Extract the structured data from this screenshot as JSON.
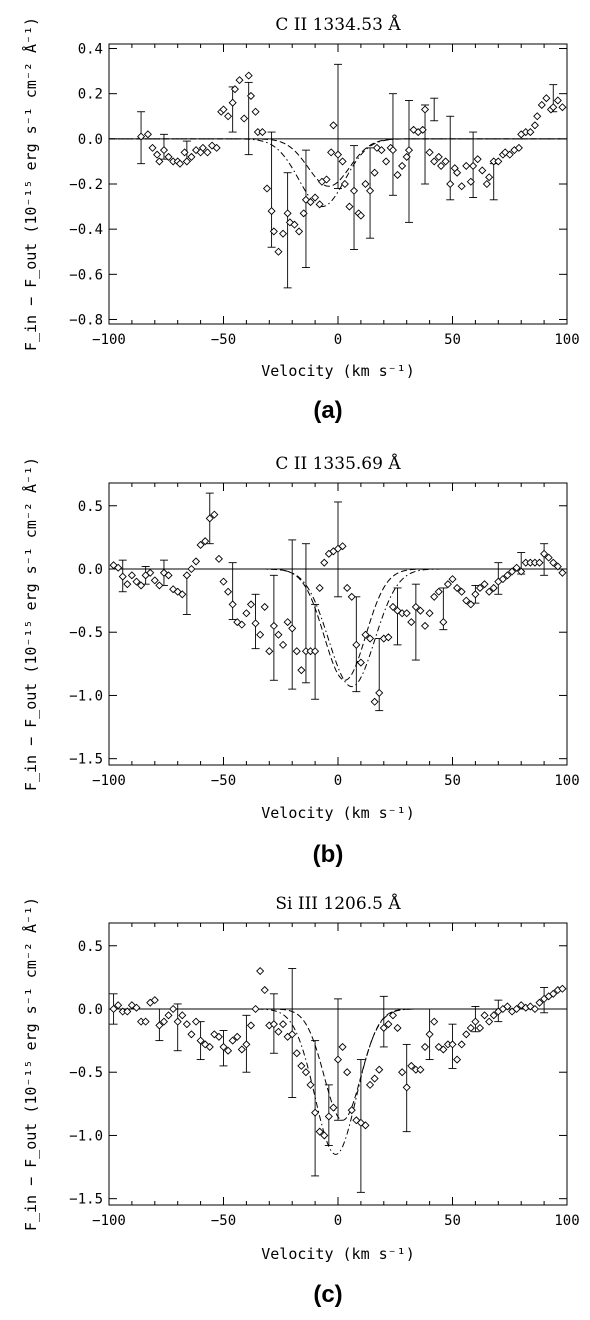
{
  "chart_data": [
    {
      "type": "scatter",
      "title": "C II 1334.53 Å",
      "xlabel": "Velocity (km s⁻¹)",
      "ylabel": "F_in − F_out (10⁻¹⁵ erg s⁻¹ cm⁻² Å⁻¹)",
      "panel_label": "(a)",
      "xlim": [
        -100,
        100
      ],
      "ylim": [
        -0.82,
        0.42
      ],
      "xticks": [
        -100,
        -50,
        0,
        50,
        100
      ],
      "xtick_labels": [
        "−100",
        "−50",
        "0",
        "50",
        "100"
      ],
      "yticks": [
        -0.8,
        -0.6,
        -0.4,
        -0.2,
        0.0,
        0.2,
        0.4
      ],
      "ytick_labels": [
        "−0.8",
        "−0.6",
        "−0.4",
        "−0.2",
        "0.0",
        "0.2",
        "0.4"
      ],
      "zero_line": true,
      "x": [
        -86,
        -83,
        -81,
        -79,
        -78,
        -76,
        -74,
        -72,
        -70,
        -69,
        -67,
        -66,
        -64,
        -62,
        -60,
        -59,
        -57,
        -55,
        -53,
        -51,
        -50,
        -48,
        -46,
        -45,
        -43,
        -41,
        -39,
        -38,
        -36,
        -35,
        -33,
        -31,
        -29,
        -28,
        -26,
        -24,
        -22,
        -21,
        -19,
        -17,
        -15,
        -14,
        -12,
        -10,
        -8,
        -7,
        -5,
        -3,
        -2,
        0,
        2,
        3,
        5,
        7,
        9,
        10,
        12,
        14,
        16,
        17,
        19,
        21,
        23,
        24,
        26,
        28,
        30,
        31,
        33,
        35,
        37,
        38,
        40,
        42,
        44,
        45,
        47,
        49,
        51,
        52,
        54,
        56,
        58,
        59,
        61,
        63,
        65,
        66,
        68,
        70,
        72,
        73,
        75,
        77,
        79,
        80,
        82,
        84,
        86,
        87,
        89,
        91,
        93,
        94,
        96,
        98
      ],
      "y": [
        0.01,
        0.02,
        -0.04,
        -0.07,
        -0.1,
        -0.05,
        -0.08,
        -0.1,
        -0.1,
        -0.11,
        -0.06,
        -0.1,
        -0.08,
        -0.05,
        -0.06,
        -0.04,
        -0.06,
        -0.03,
        -0.04,
        0.12,
        0.13,
        0.1,
        0.16,
        0.22,
        0.26,
        0.09,
        0.28,
        0.19,
        0.12,
        0.03,
        0.03,
        -0.22,
        -0.32,
        -0.41,
        -0.5,
        -0.42,
        -0.33,
        -0.37,
        -0.38,
        -0.41,
        -0.33,
        -0.27,
        -0.28,
        -0.26,
        -0.29,
        -0.19,
        -0.18,
        -0.06,
        0.06,
        -0.07,
        -0.1,
        -0.2,
        -0.3,
        -0.23,
        -0.33,
        -0.34,
        -0.2,
        -0.23,
        -0.15,
        -0.04,
        -0.05,
        -0.1,
        -0.04,
        -0.05,
        -0.16,
        -0.12,
        -0.08,
        -0.05,
        0.04,
        0.03,
        0.04,
        0.13,
        -0.06,
        -0.1,
        -0.08,
        -0.12,
        -0.1,
        -0.2,
        -0.13,
        -0.15,
        -0.21,
        -0.12,
        -0.19,
        -0.12,
        -0.09,
        -0.14,
        -0.2,
        -0.17,
        -0.1,
        -0.1,
        -0.07,
        -0.06,
        -0.07,
        -0.05,
        -0.04,
        0.02,
        0.03,
        0.03,
        0.06,
        0.1,
        0.15,
        0.18,
        0.13,
        0.14,
        0.17,
        0.14
      ],
      "errorbars": [
        {
          "x": -86,
          "y": 0.01,
          "lo": -0.11,
          "hi": 0.12
        },
        {
          "x": -76,
          "y": -0.05,
          "lo": -0.09,
          "hi": 0.02
        },
        {
          "x": -66,
          "y": -0.06,
          "lo": -0.1,
          "hi": -0.01
        },
        {
          "x": -46,
          "y": 0.13,
          "lo": 0.03,
          "hi": 0.23
        },
        {
          "x": -39,
          "y": 0.1,
          "lo": -0.07,
          "hi": 0.25
        },
        {
          "x": -29,
          "y": -0.23,
          "lo": -0.48,
          "hi": 0.03
        },
        {
          "x": -22,
          "y": -0.4,
          "lo": -0.66,
          "hi": -0.15
        },
        {
          "x": -14,
          "y": -0.31,
          "lo": -0.57,
          "hi": -0.05
        },
        {
          "x": 0,
          "y": 0.06,
          "lo": -0.22,
          "hi": 0.33
        },
        {
          "x": 7,
          "y": -0.23,
          "lo": -0.49,
          "hi": -0.03
        },
        {
          "x": 14,
          "y": -0.2,
          "lo": -0.44,
          "hi": -0.04
        },
        {
          "x": 24,
          "y": -0.02,
          "lo": -0.25,
          "hi": 0.2
        },
        {
          "x": 31,
          "y": -0.09,
          "lo": -0.37,
          "hi": 0.17
        },
        {
          "x": 38,
          "y": -0.01,
          "lo": -0.2,
          "hi": 0.15
        },
        {
          "x": 42,
          "y": 0.13,
          "lo": 0.08,
          "hi": 0.18
        },
        {
          "x": 49,
          "y": -0.08,
          "lo": -0.27,
          "hi": 0.1
        },
        {
          "x": 59,
          "y": -0.13,
          "lo": -0.26,
          "hi": 0.03
        },
        {
          "x": 68,
          "y": -0.19,
          "lo": -0.27,
          "hi": -0.11
        },
        {
          "x": 94,
          "y": 0.18,
          "lo": 0.12,
          "hi": 0.24
        }
      ],
      "models": [
        {
          "style": "dashed",
          "amp": -0.21,
          "center": -4,
          "width": 9
        },
        {
          "style": "dash-dot",
          "amp": -0.3,
          "center": -7,
          "width": 10
        }
      ]
    },
    {
      "type": "scatter",
      "title": "C II 1335.69 Å",
      "xlabel": "Velocity (km s⁻¹)",
      "ylabel": "F_in − F_out (10⁻¹⁵ erg s⁻¹ cm⁻² Å⁻¹)",
      "panel_label": "(b)",
      "xlim": [
        -100,
        100
      ],
      "ylim": [
        -1.55,
        0.68
      ],
      "xticks": [
        -100,
        -50,
        0,
        50,
        100
      ],
      "xtick_labels": [
        "−100",
        "−50",
        "0",
        "50",
        "100"
      ],
      "yticks": [
        -1.5,
        -1.0,
        -0.5,
        0.0,
        0.5
      ],
      "ytick_labels": [
        "−1.5",
        "−1.0",
        "−0.5",
        "0.0",
        "0.5"
      ],
      "zero_line": true,
      "x": [
        -98,
        -96,
        -94,
        -92,
        -90,
        -88,
        -86,
        -84,
        -82,
        -80,
        -78,
        -76,
        -74,
        -72,
        -70,
        -68,
        -66,
        -64,
        -62,
        -60,
        -58,
        -56,
        -54,
        -52,
        -50,
        -48,
        -46,
        -44,
        -42,
        -40,
        -38,
        -36,
        -34,
        -32,
        -30,
        -28,
        -26,
        -24,
        -22,
        -20,
        -18,
        -16,
        -14,
        -12,
        -10,
        -8,
        -6,
        -4,
        -2,
        0,
        2,
        4,
        6,
        8,
        10,
        12,
        14,
        16,
        18,
        20,
        22,
        24,
        26,
        28,
        30,
        32,
        34,
        36,
        38,
        40,
        42,
        44,
        46,
        48,
        50,
        52,
        54,
        56,
        58,
        60,
        62,
        64,
        66,
        68,
        70,
        72,
        74,
        76,
        78,
        80,
        82,
        84,
        86,
        88,
        90,
        92,
        94,
        96,
        98
      ],
      "y": [
        0.03,
        0.01,
        -0.06,
        -0.12,
        -0.05,
        -0.1,
        -0.13,
        -0.05,
        -0.03,
        -0.09,
        -0.13,
        -0.03,
        -0.05,
        -0.16,
        -0.18,
        -0.2,
        -0.05,
        0.0,
        0.06,
        0.19,
        0.22,
        0.4,
        0.43,
        0.08,
        -0.1,
        -0.18,
        -0.28,
        -0.42,
        -0.44,
        -0.35,
        -0.28,
        -0.43,
        -0.52,
        -0.3,
        -0.65,
        -0.45,
        -0.52,
        -0.6,
        -0.42,
        -0.47,
        -0.65,
        -0.8,
        -0.65,
        -0.65,
        -0.65,
        -0.15,
        0.05,
        0.12,
        0.14,
        0.16,
        0.18,
        -0.15,
        -0.22,
        -0.6,
        -0.74,
        -0.52,
        -0.55,
        -1.05,
        -0.98,
        -0.55,
        -0.54,
        -0.3,
        -0.33,
        -0.35,
        -0.35,
        -0.42,
        -0.3,
        -0.33,
        -0.45,
        -0.35,
        -0.22,
        -0.18,
        -0.42,
        -0.12,
        -0.08,
        -0.15,
        -0.18,
        -0.25,
        -0.28,
        -0.2,
        -0.15,
        -0.12,
        -0.18,
        -0.15,
        -0.1,
        -0.08,
        -0.05,
        -0.02,
        0.01,
        -0.02,
        0.05,
        0.05,
        0.05,
        0.05,
        0.12,
        0.09,
        0.05,
        0.02,
        -0.03
      ],
      "errorbars": [
        {
          "x": -94,
          "y": -0.06,
          "lo": -0.18,
          "hi": 0.07
        },
        {
          "x": -84,
          "y": -0.05,
          "lo": -0.12,
          "hi": 0.02
        },
        {
          "x": -76,
          "y": -0.03,
          "lo": -0.13,
          "hi": 0.07
        },
        {
          "x": -66,
          "y": -0.19,
          "lo": -0.36,
          "hi": -0.05
        },
        {
          "x": -56,
          "y": 0.4,
          "lo": 0.2,
          "hi": 0.6
        },
        {
          "x": -46,
          "y": -0.18,
          "lo": -0.4,
          "hi": 0.05
        },
        {
          "x": -36,
          "y": -0.43,
          "lo": -0.63,
          "hi": -0.2
        },
        {
          "x": -28,
          "y": -0.45,
          "lo": -0.88,
          "hi": -0.05
        },
        {
          "x": -20,
          "y": -0.47,
          "lo": -0.95,
          "hi": 0.23
        },
        {
          "x": -14,
          "y": -0.38,
          "lo": -0.9,
          "hi": 0.2
        },
        {
          "x": -10,
          "y": -0.65,
          "lo": -1.03,
          "hi": -0.28
        },
        {
          "x": 0,
          "y": 0.16,
          "lo": -0.22,
          "hi": 0.53
        },
        {
          "x": 8,
          "y": -0.6,
          "lo": -0.97,
          "hi": -0.22
        },
        {
          "x": 18,
          "y": -0.98,
          "lo": -1.12,
          "hi": -0.55
        },
        {
          "x": 26,
          "y": -0.35,
          "lo": -0.6,
          "hi": -0.15
        },
        {
          "x": 34,
          "y": -0.42,
          "lo": -0.72,
          "hi": -0.12
        },
        {
          "x": 46,
          "y": -0.3,
          "lo": -0.48,
          "hi": -0.15
        },
        {
          "x": 60,
          "y": -0.2,
          "lo": -0.27,
          "hi": -0.13
        },
        {
          "x": 70,
          "y": -0.08,
          "lo": -0.2,
          "hi": 0.05
        },
        {
          "x": 80,
          "y": 0.05,
          "lo": -0.04,
          "hi": 0.13
        },
        {
          "x": 90,
          "y": 0.09,
          "lo": -0.05,
          "hi": 0.2
        }
      ],
      "models": [
        {
          "style": "dashed",
          "amp": -0.88,
          "center": 3,
          "width": 9
        },
        {
          "style": "dash-dot",
          "amp": -0.93,
          "center": 6,
          "width": 10
        }
      ]
    },
    {
      "type": "scatter",
      "title": "Si III 1206.5 Å",
      "xlabel": "Velocity (km s⁻¹)",
      "ylabel": "F_in − F_out (10⁻¹⁵ erg s⁻¹ cm⁻² Å⁻¹)",
      "panel_label": "(c)",
      "xlim": [
        -100,
        100
      ],
      "ylim": [
        -1.55,
        0.68
      ],
      "xticks": [
        -100,
        -50,
        0,
        50,
        100
      ],
      "xtick_labels": [
        "−100",
        "−50",
        "0",
        "50",
        "100"
      ],
      "yticks": [
        -1.5,
        -1.0,
        -0.5,
        0.0,
        0.5
      ],
      "ytick_labels": [
        "−1.5",
        "−1.0",
        "−0.5",
        "0.0",
        "0.5"
      ],
      "zero_line": true,
      "x": [
        -98,
        -96,
        -94,
        -92,
        -90,
        -88,
        -86,
        -84,
        -82,
        -80,
        -78,
        -76,
        -74,
        -72,
        -70,
        -68,
        -66,
        -64,
        -62,
        -60,
        -58,
        -56,
        -54,
        -52,
        -50,
        -48,
        -46,
        -44,
        -42,
        -40,
        -38,
        -36,
        -34,
        -32,
        -30,
        -28,
        -26,
        -24,
        -22,
        -20,
        -18,
        -16,
        -14,
        -12,
        -10,
        -8,
        -6,
        -4,
        -2,
        0,
        2,
        4,
        6,
        8,
        10,
        12,
        14,
        16,
        18,
        20,
        22,
        24,
        26,
        28,
        30,
        32,
        34,
        36,
        38,
        40,
        42,
        44,
        46,
        48,
        50,
        52,
        54,
        56,
        58,
        60,
        62,
        64,
        66,
        68,
        70,
        72,
        74,
        76,
        78,
        80,
        82,
        84,
        86,
        88,
        90,
        92,
        94,
        96,
        98
      ],
      "y": [
        0.0,
        0.03,
        -0.02,
        -0.02,
        0.03,
        0.01,
        -0.1,
        -0.1,
        0.05,
        0.07,
        -0.13,
        -0.1,
        -0.05,
        0.0,
        -0.1,
        -0.05,
        -0.12,
        -0.2,
        -0.1,
        -0.25,
        -0.28,
        -0.3,
        -0.2,
        -0.22,
        -0.3,
        -0.33,
        -0.25,
        -0.22,
        -0.32,
        -0.28,
        -0.13,
        0.0,
        0.3,
        0.15,
        -0.13,
        -0.12,
        -0.18,
        -0.12,
        -0.22,
        -0.2,
        -0.35,
        -0.45,
        -0.5,
        -0.6,
        -0.82,
        -0.97,
        -1.0,
        -0.85,
        -0.78,
        -0.4,
        -0.3,
        -0.5,
        -0.8,
        -0.88,
        -0.9,
        -0.92,
        -0.6,
        -0.55,
        -0.48,
        -0.15,
        -0.12,
        -0.05,
        -0.15,
        -0.5,
        -0.62,
        -0.45,
        -0.48,
        -0.48,
        -0.3,
        -0.2,
        -0.1,
        -0.3,
        -0.32,
        -0.28,
        -0.28,
        -0.4,
        -0.28,
        -0.2,
        -0.15,
        -0.1,
        -0.15,
        -0.05,
        -0.1,
        -0.05,
        -0.02,
        0.0,
        0.02,
        -0.02,
        0.0,
        0.03,
        0.01,
        0.02,
        0.0,
        0.05,
        0.08,
        0.1,
        0.12,
        0.15,
        0.16
      ],
      "errorbars": [
        {
          "x": -98,
          "y": 0.0,
          "lo": -0.12,
          "hi": 0.12
        },
        {
          "x": -78,
          "y": -0.13,
          "lo": -0.25,
          "hi": 0.0
        },
        {
          "x": -70,
          "y": -0.1,
          "lo": -0.33,
          "hi": 0.04
        },
        {
          "x": -60,
          "y": -0.25,
          "lo": -0.4,
          "hi": -0.1
        },
        {
          "x": -50,
          "y": -0.3,
          "lo": -0.45,
          "hi": -0.17
        },
        {
          "x": -40,
          "y": -0.28,
          "lo": -0.5,
          "hi": -0.05
        },
        {
          "x": -28,
          "y": -0.12,
          "lo": -0.35,
          "hi": 0.12
        },
        {
          "x": -20,
          "y": -0.2,
          "lo": -0.7,
          "hi": 0.32
        },
        {
          "x": -10,
          "y": -0.82,
          "lo": -1.32,
          "hi": -0.25
        },
        {
          "x": -4,
          "y": -0.85,
          "lo": -1.08,
          "hi": -0.6
        },
        {
          "x": 0,
          "y": -0.4,
          "lo": -0.88,
          "hi": 0.08
        },
        {
          "x": 10,
          "y": -0.9,
          "lo": -1.45,
          "hi": -0.4
        },
        {
          "x": 20,
          "y": -0.15,
          "lo": -0.3,
          "hi": 0.1
        },
        {
          "x": 30,
          "y": -0.62,
          "lo": -0.97,
          "hi": -0.28
        },
        {
          "x": 40,
          "y": -0.2,
          "lo": -0.4,
          "hi": 0.0
        },
        {
          "x": 50,
          "y": -0.28,
          "lo": -0.47,
          "hi": -0.12
        },
        {
          "x": 60,
          "y": -0.1,
          "lo": -0.18,
          "hi": 0.02
        },
        {
          "x": 70,
          "y": -0.02,
          "lo": -0.1,
          "hi": 0.07
        },
        {
          "x": 90,
          "y": 0.08,
          "lo": -0.03,
          "hi": 0.17
        }
      ],
      "models": [
        {
          "style": "dashed",
          "amp": -0.88,
          "center": 2,
          "width": 8
        },
        {
          "style": "dash-dot",
          "amp": -1.15,
          "center": -1,
          "width": 9
        }
      ]
    }
  ]
}
